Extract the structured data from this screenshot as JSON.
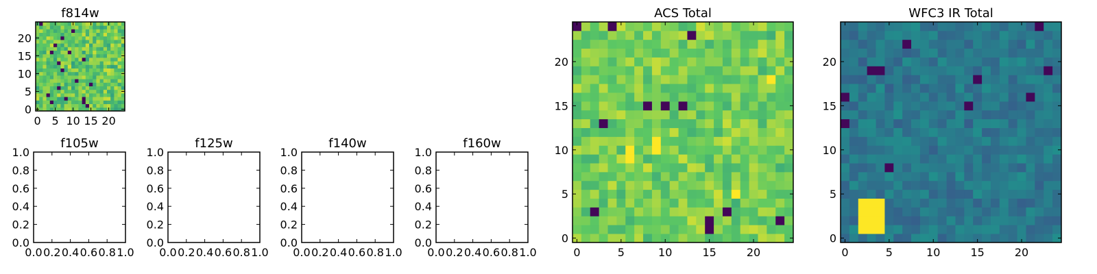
{
  "chart_data": [
    {
      "type": "heatmap",
      "title": "f814w",
      "grid_size": 25,
      "colormap": "viridis",
      "xticks": [
        0,
        5,
        10,
        15,
        20
      ],
      "yticks": [
        0,
        5,
        10,
        15,
        20
      ],
      "value_range": [
        0,
        1
      ],
      "noise_mean": 0.75,
      "noise_spread": 0.15,
      "dark_pixels": [
        [
          1,
          24
        ],
        [
          4,
          16
        ],
        [
          6,
          6
        ],
        [
          13,
          14
        ],
        [
          5,
          18
        ],
        [
          9,
          16
        ],
        [
          7,
          20
        ],
        [
          11,
          8
        ],
        [
          3,
          4
        ],
        [
          8,
          3
        ],
        [
          14,
          1
        ],
        [
          15,
          7
        ],
        [
          13,
          2
        ],
        [
          10,
          22
        ],
        [
          4,
          2
        ],
        [
          6,
          13
        ],
        [
          13,
          3
        ],
        [
          7,
          11
        ]
      ]
    },
    {
      "type": "empty",
      "title": "f105w",
      "xlim": [
        0,
        1
      ],
      "ylim": [
        0,
        1
      ],
      "ticks": [
        "0.0",
        "0.2",
        "0.4",
        "0.6",
        "0.8",
        "1.0"
      ]
    },
    {
      "type": "empty",
      "title": "f125w",
      "xlim": [
        0,
        1
      ],
      "ylim": [
        0,
        1
      ],
      "ticks": [
        "0.0",
        "0.2",
        "0.4",
        "0.6",
        "0.8",
        "1.0"
      ]
    },
    {
      "type": "empty",
      "title": "f140w",
      "xlim": [
        0,
        1
      ],
      "ylim": [
        0,
        1
      ],
      "ticks": [
        "0.0",
        "0.2",
        "0.4",
        "0.6",
        "0.8",
        "1.0"
      ]
    },
    {
      "type": "empty",
      "title": "f160w",
      "xlim": [
        0,
        1
      ],
      "ylim": [
        0,
        1
      ],
      "ticks": [
        "0.0",
        "0.2",
        "0.4",
        "0.6",
        "0.8",
        "1.0"
      ]
    },
    {
      "type": "heatmap",
      "title": "ACS Total",
      "grid_size": 25,
      "colormap": "viridis",
      "xticks": [
        0,
        5,
        10,
        15,
        20
      ],
      "yticks": [
        0,
        5,
        10,
        15,
        20
      ],
      "value_range": [
        0,
        1
      ],
      "noise_mean": 0.78,
      "noise_spread": 0.12,
      "dark_pixels": [
        [
          0,
          24
        ],
        [
          4,
          24
        ],
        [
          13,
          23
        ],
        [
          8,
          15
        ],
        [
          10,
          15
        ],
        [
          12,
          15
        ],
        [
          2,
          3
        ],
        [
          17,
          3
        ],
        [
          15,
          1
        ],
        [
          15,
          2
        ],
        [
          23,
          2
        ],
        [
          3,
          13
        ]
      ],
      "bright_pixels": [
        [
          6,
          9
        ],
        [
          6,
          10
        ],
        [
          9,
          10
        ],
        [
          9,
          11
        ],
        [
          18,
          5
        ],
        [
          22,
          18
        ]
      ]
    },
    {
      "type": "heatmap",
      "title": "WFC3 IR Total",
      "grid_size": 25,
      "colormap": "viridis",
      "xticks": [
        0,
        5,
        10,
        15,
        20
      ],
      "yticks": [
        0,
        5,
        10,
        15,
        20
      ],
      "value_range": [
        0,
        1
      ],
      "noise_mean": 0.4,
      "noise_spread": 0.08,
      "dark_pixels": [
        [
          3,
          19
        ],
        [
          7,
          22
        ],
        [
          15,
          18
        ],
        [
          23,
          19
        ],
        [
          21,
          16
        ],
        [
          0,
          16
        ],
        [
          0,
          13
        ],
        [
          5,
          8
        ],
        [
          22,
          24
        ],
        [
          14,
          15
        ],
        [
          4,
          19
        ]
      ],
      "bright_pixels": [
        [
          2,
          2
        ],
        [
          3,
          2
        ],
        [
          4,
          2
        ],
        [
          2,
          3
        ],
        [
          3,
          3
        ],
        [
          4,
          3
        ],
        [
          2,
          4
        ],
        [
          3,
          4
        ],
        [
          4,
          4
        ],
        [
          2,
          1
        ],
        [
          3,
          1
        ],
        [
          4,
          1
        ],
        [
          3,
          3
        ]
      ]
    }
  ]
}
